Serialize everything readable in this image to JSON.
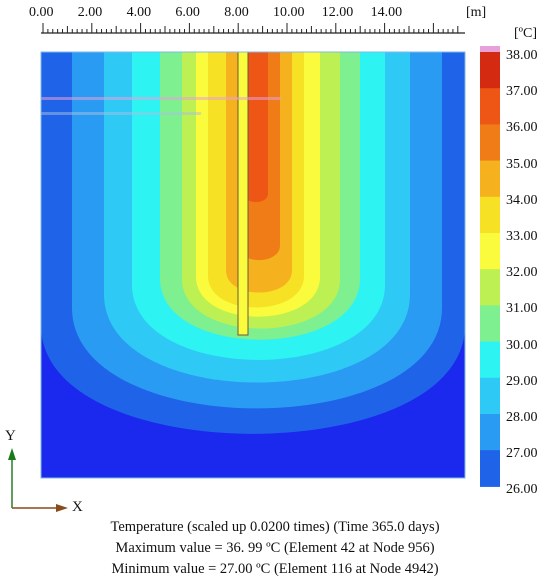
{
  "ruler": {
    "ticks": [
      "0.00",
      "2.00",
      "4.00",
      "6.00",
      "8.00",
      "10.00",
      "12.00",
      "14.00"
    ],
    "unit": "[m]"
  },
  "legend": {
    "unit": "[ºC]",
    "levels": [
      "38.00",
      "37.00",
      "36.00",
      "35.00",
      "34.00",
      "33.00",
      "32.00",
      "31.00",
      "30.00",
      "29.00",
      "28.00",
      "27.00",
      "26.00"
    ],
    "colors": [
      "#d42a12",
      "#ed5614",
      "#f07c18",
      "#f5b21e",
      "#f6e124",
      "#fafb3c",
      "#bdf052",
      "#7ef08f",
      "#2ef3f3",
      "#2fc9f6",
      "#2a9bf2",
      "#1f63e9",
      "#1b28ee"
    ]
  },
  "axes": {
    "y_label": "Y",
    "x_label": "X"
  },
  "caption": {
    "line1": "Temperature (scaled up 0.0200 times) (Time 365.0 days)",
    "line2": "Maximum value = 36. 99 ºC (Element 42 at Node 956)",
    "line3": "Minimum value = 27.00 ºC (Element 116 at Node 4942)"
  }
}
